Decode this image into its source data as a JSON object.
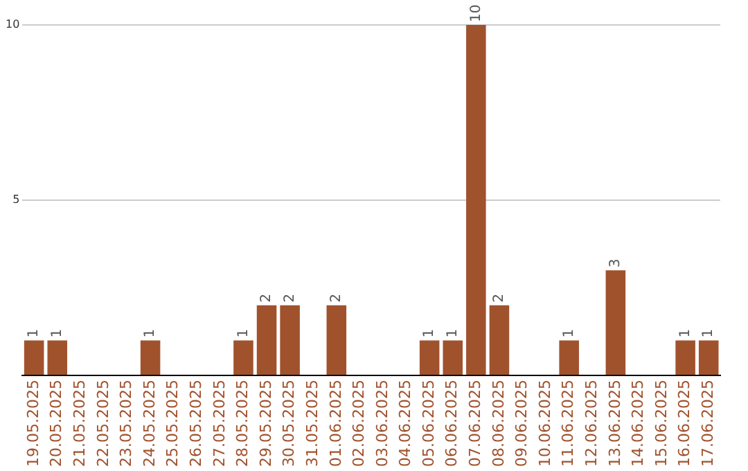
{
  "chart_data": {
    "type": "bar",
    "categories": [
      "19.05.2025",
      "20.05.2025",
      "21.05.2025",
      "22.05.2025",
      "23.05.2025",
      "24.05.2025",
      "25.05.2025",
      "26.05.2025",
      "27.05.2025",
      "28.05.2025",
      "29.05.2025",
      "30.05.2025",
      "31.05.2025",
      "01.06.2025",
      "02.06.2025",
      "03.06.2025",
      "04.06.2025",
      "05.06.2025",
      "06.06.2025",
      "07.06.2025",
      "08.06.2025",
      "09.06.2025",
      "10.06.2025",
      "11.06.2025",
      "12.06.2025",
      "13.06.2025",
      "14.06.2025",
      "15.06.2025",
      "16.06.2025",
      "17.06.2025"
    ],
    "values": [
      1,
      1,
      null,
      null,
      null,
      1,
      null,
      null,
      null,
      1,
      2,
      2,
      null,
      2,
      null,
      null,
      null,
      1,
      1,
      10,
      2,
      null,
      null,
      1,
      null,
      3,
      null,
      null,
      1,
      1
    ],
    "color": "#a0522d",
    "ylim": [
      0,
      10
    ],
    "yticks": [
      {
        "value": 0,
        "label": null
      },
      5,
      10
    ],
    "grid": "y",
    "data_labels": true
  }
}
